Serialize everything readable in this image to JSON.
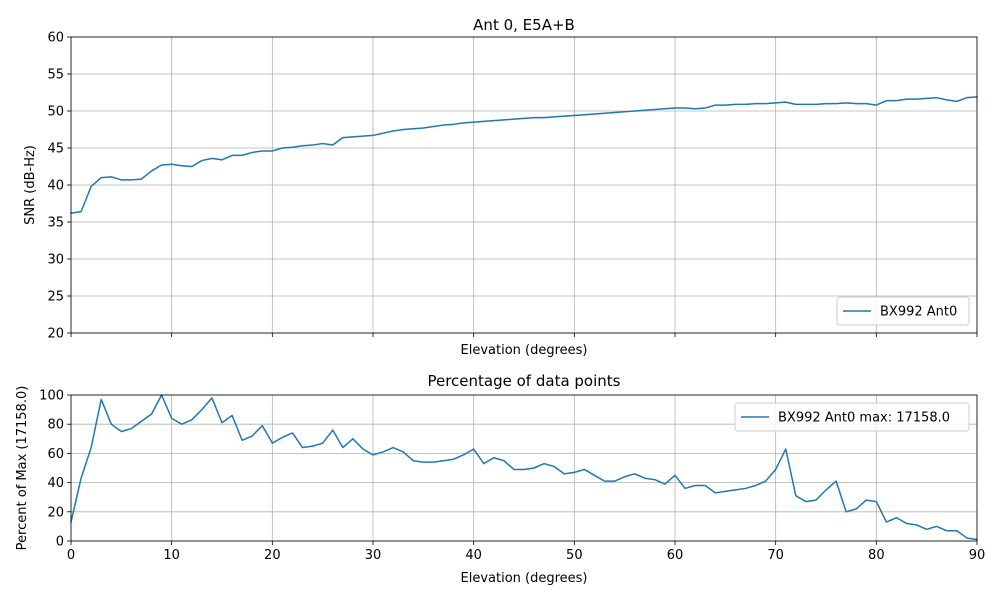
{
  "chart_data": [
    {
      "type": "line",
      "title": "Ant 0, E5A+B",
      "xlabel": "Elevation (degrees)",
      "ylabel": "SNR (dB-Hz)",
      "xlim": [
        0,
        90
      ],
      "ylim": [
        20,
        60
      ],
      "xticks": [
        0,
        10,
        20,
        30,
        40,
        50,
        60,
        70,
        80,
        90
      ],
      "yticks": [
        20,
        25,
        30,
        35,
        40,
        45,
        50,
        55,
        60
      ],
      "show_xtick_labels": false,
      "grid": true,
      "legend_position": "lower-right",
      "series": [
        {
          "name": "BX992 Ant0",
          "color": "#1f77b4",
          "x": [
            0,
            1,
            2,
            3,
            4,
            5,
            6,
            7,
            8,
            9,
            10,
            11,
            12,
            13,
            14,
            15,
            16,
            17,
            18,
            19,
            20,
            21,
            22,
            23,
            24,
            25,
            26,
            27,
            28,
            29,
            30,
            31,
            32,
            33,
            34,
            35,
            36,
            37,
            38,
            39,
            40,
            41,
            42,
            43,
            44,
            45,
            46,
            47,
            48,
            49,
            50,
            51,
            52,
            53,
            54,
            55,
            56,
            57,
            58,
            59,
            60,
            61,
            62,
            63,
            64,
            65,
            66,
            67,
            68,
            69,
            70,
            71,
            72,
            73,
            74,
            75,
            76,
            77,
            78,
            79,
            80,
            81,
            82,
            83,
            84,
            85,
            86,
            87,
            88,
            89,
            90
          ],
          "y": [
            36.2,
            36.4,
            39.8,
            41.0,
            41.1,
            40.7,
            40.7,
            40.8,
            41.9,
            42.7,
            42.8,
            42.6,
            42.5,
            43.3,
            43.6,
            43.4,
            44.0,
            44.0,
            44.4,
            44.6,
            44.6,
            45.0,
            45.1,
            45.3,
            45.4,
            45.6,
            45.4,
            46.4,
            46.5,
            46.6,
            46.7,
            47.0,
            47.3,
            47.5,
            47.6,
            47.7,
            47.9,
            48.1,
            48.2,
            48.4,
            48.5,
            48.6,
            48.7,
            48.8,
            48.9,
            49.0,
            49.1,
            49.1,
            49.2,
            49.3,
            49.4,
            49.5,
            49.6,
            49.7,
            49.8,
            49.9,
            50.0,
            50.1,
            50.2,
            50.3,
            50.4,
            50.4,
            50.3,
            50.4,
            50.8,
            50.8,
            50.9,
            50.9,
            51.0,
            51.0,
            51.1,
            51.2,
            50.9,
            50.9,
            50.9,
            51.0,
            51.0,
            51.1,
            51.0,
            51.0,
            50.8,
            51.4,
            51.4,
            51.6,
            51.6,
            51.7,
            51.8,
            51.5,
            51.3,
            51.8,
            51.9
          ]
        }
      ]
    },
    {
      "type": "line",
      "title": "Percentage of data points",
      "xlabel": "Elevation (degrees)",
      "ylabel": "Percent of Max (17158.0)",
      "xlim": [
        0,
        90
      ],
      "ylim": [
        0,
        100
      ],
      "xticks": [
        0,
        10,
        20,
        30,
        40,
        50,
        60,
        70,
        80,
        90
      ],
      "yticks": [
        0,
        20,
        40,
        60,
        80,
        100
      ],
      "show_xtick_labels": true,
      "grid": true,
      "legend_position": "upper-right",
      "series": [
        {
          "name": "BX992 Ant0 max: 17158.0",
          "color": "#1f77b4",
          "x": [
            0,
            1,
            2,
            3,
            4,
            5,
            6,
            7,
            8,
            9,
            10,
            11,
            12,
            13,
            14,
            15,
            16,
            17,
            18,
            19,
            20,
            21,
            22,
            23,
            24,
            25,
            26,
            27,
            28,
            29,
            30,
            31,
            32,
            33,
            34,
            35,
            36,
            37,
            38,
            39,
            40,
            41,
            42,
            43,
            44,
            45,
            46,
            47,
            48,
            49,
            50,
            51,
            52,
            53,
            54,
            55,
            56,
            57,
            58,
            59,
            60,
            61,
            62,
            63,
            64,
            65,
            66,
            67,
            68,
            69,
            70,
            71,
            72,
            73,
            74,
            75,
            76,
            77,
            78,
            79,
            80,
            81,
            82,
            83,
            84,
            85,
            86,
            87,
            88,
            89,
            90
          ],
          "y": [
            13,
            43,
            64,
            97,
            80,
            75,
            77,
            82,
            87,
            100,
            84,
            80,
            83,
            90,
            98,
            81,
            86,
            69,
            72,
            79,
            67,
            71,
            74,
            64,
            65,
            67,
            76,
            64,
            70,
            63,
            59,
            61,
            64,
            61,
            55,
            54,
            54,
            55,
            56,
            59,
            63,
            53,
            57,
            55,
            49,
            49,
            50,
            53,
            51,
            46,
            47,
            49,
            45,
            41,
            41,
            44,
            46,
            43,
            42,
            39,
            45,
            36,
            38,
            38,
            33,
            34,
            35,
            36,
            38,
            41,
            49,
            63,
            31,
            27,
            28,
            35,
            41,
            20,
            22,
            28,
            27,
            13,
            16,
            12,
            11,
            8,
            10,
            7,
            7,
            2,
            1
          ]
        }
      ]
    }
  ]
}
